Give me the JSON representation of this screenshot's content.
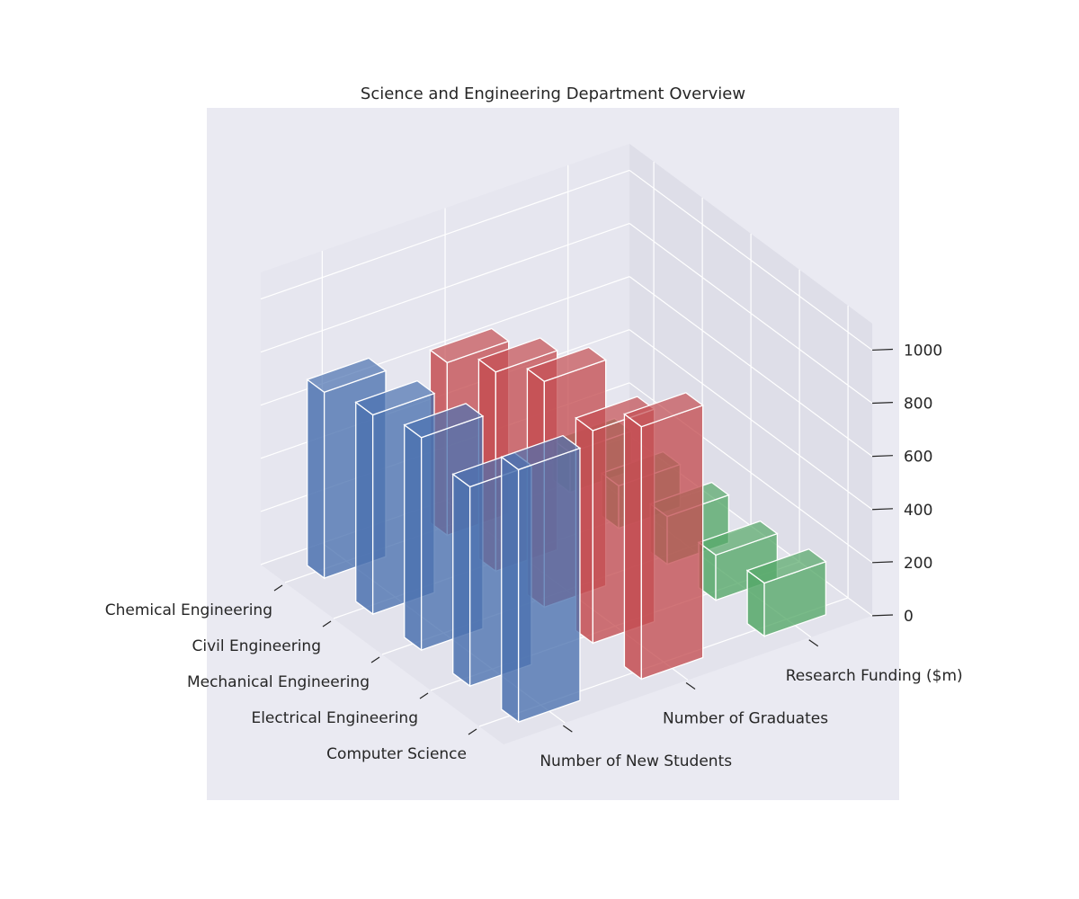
{
  "chart_data": {
    "type": "bar3d",
    "title": "Science and Engineering Department Overview",
    "categories": [
      "Chemical Engineering",
      "Civil Engineering",
      "Mechanical Engineering",
      "Electrical Engineering",
      "Computer Science"
    ],
    "series": [
      {
        "name": "Number of New Students",
        "color": "#4c72b0",
        "values": [
          700,
          750,
          800,
          750,
          950
        ]
      },
      {
        "name": "Number of Graduates",
        "color": "#c44e52",
        "values": [
          650,
          750,
          850,
          800,
          950
        ]
      },
      {
        "name": "Research Funding ($m)",
        "color": "#55a868",
        "values": [
          150,
          160,
          180,
          170,
          200
        ]
      }
    ],
    "zlim": [
      0,
      1100
    ],
    "zticks": [
      0,
      200,
      400,
      600,
      800,
      1000
    ],
    "grid": true
  }
}
